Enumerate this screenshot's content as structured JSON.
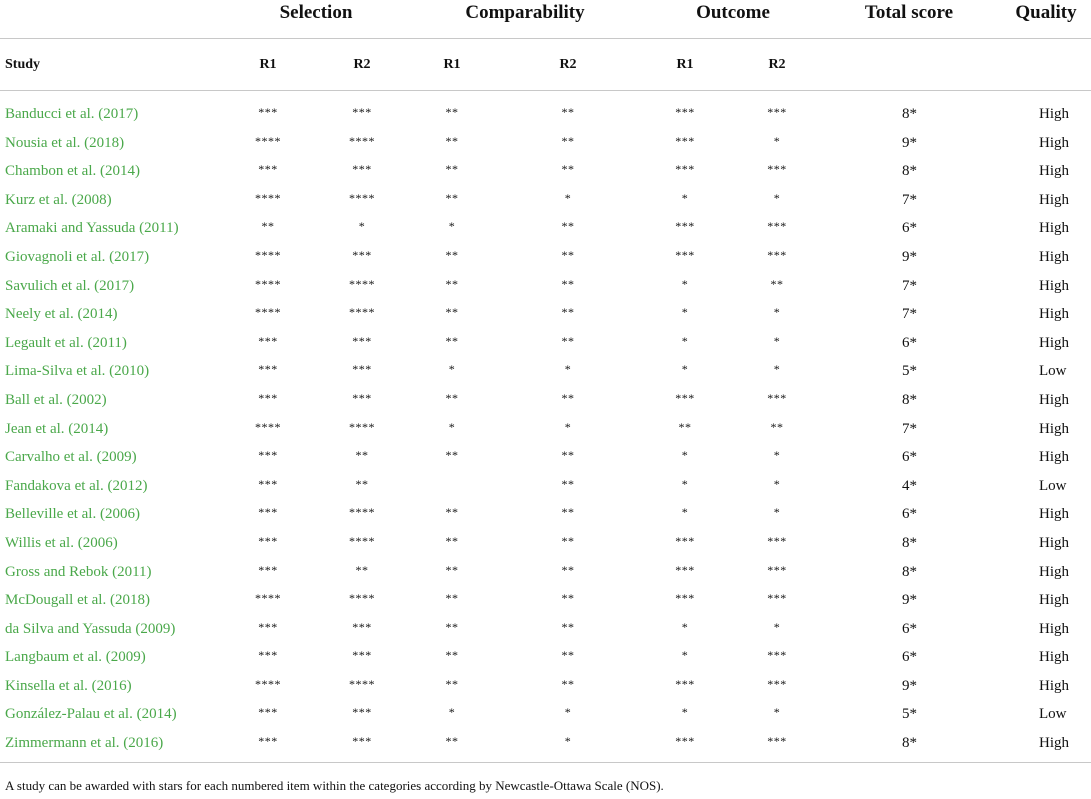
{
  "header": {
    "categories": [
      "Selection",
      "Comparability",
      "Outcome",
      "Total score",
      "Quality"
    ],
    "sub": {
      "study": "Study",
      "sel_r1": "R1",
      "sel_r2": "R2",
      "comp_r1": "R1",
      "comp_r2": "R2",
      "out_r1": "R1",
      "out_r2": "R2"
    }
  },
  "rows": [
    {
      "study": "Banducci et al. (2017)",
      "sel_r1": "***",
      "sel_r2": "***",
      "comp_r1": "**",
      "comp_r2": "**",
      "out_r1": "***",
      "out_r2": "***",
      "total": "8*",
      "quality": "High"
    },
    {
      "study": "Nousia et al. (2018)",
      "sel_r1": "****",
      "sel_r2": "****",
      "comp_r1": "**",
      "comp_r2": "**",
      "out_r1": "***",
      "out_r2": "*",
      "total": "9*",
      "quality": "High"
    },
    {
      "study": "Chambon et al. (2014)",
      "sel_r1": "***",
      "sel_r2": "***",
      "comp_r1": "**",
      "comp_r2": "**",
      "out_r1": "***",
      "out_r2": "***",
      "total": "8*",
      "quality": "High"
    },
    {
      "study": "Kurz et al. (2008)",
      "sel_r1": "****",
      "sel_r2": "****",
      "comp_r1": "**",
      "comp_r2": "*",
      "out_r1": "*",
      "out_r2": "*",
      "total": "7*",
      "quality": "High"
    },
    {
      "study": "Aramaki and Yassuda (2011)",
      "sel_r1": "**",
      "sel_r2": "*",
      "comp_r1": "*",
      "comp_r2": "**",
      "out_r1": "***",
      "out_r2": "***",
      "total": "6*",
      "quality": "High"
    },
    {
      "study": "Giovagnoli et al. (2017)",
      "sel_r1": "****",
      "sel_r2": "***",
      "comp_r1": "**",
      "comp_r2": "**",
      "out_r1": "***",
      "out_r2": "***",
      "total": "9*",
      "quality": "High"
    },
    {
      "study": "Savulich et al. (2017)",
      "sel_r1": "****",
      "sel_r2": "****",
      "comp_r1": "**",
      "comp_r2": "**",
      "out_r1": "*",
      "out_r2": "**",
      "total": "7*",
      "quality": "High"
    },
    {
      "study": "Neely et al. (2014)",
      "sel_r1": "****",
      "sel_r2": "****",
      "comp_r1": "**",
      "comp_r2": "**",
      "out_r1": "*",
      "out_r2": "*",
      "total": "7*",
      "quality": "High"
    },
    {
      "study": "Legault et al. (2011)",
      "sel_r1": "***",
      "sel_r2": "***",
      "comp_r1": "**",
      "comp_r2": "**",
      "out_r1": "*",
      "out_r2": "*",
      "total": "6*",
      "quality": "High"
    },
    {
      "study": "Lima-Silva et al. (2010)",
      "sel_r1": "***",
      "sel_r2": "***",
      "comp_r1": "*",
      "comp_r2": "*",
      "out_r1": "*",
      "out_r2": "*",
      "total": "5*",
      "quality": "Low"
    },
    {
      "study": "Ball et al. (2002)",
      "sel_r1": "***",
      "sel_r2": "***",
      "comp_r1": "**",
      "comp_r2": "**",
      "out_r1": "***",
      "out_r2": "***",
      "total": "8*",
      "quality": "High"
    },
    {
      "study": "Jean et al. (2014)",
      "sel_r1": "****",
      "sel_r2": "****",
      "comp_r1": "*",
      "comp_r2": "*",
      "out_r1": "**",
      "out_r2": "**",
      "total": "7*",
      "quality": "High"
    },
    {
      "study": "Carvalho et al. (2009)",
      "sel_r1": "***",
      "sel_r2": "**",
      "comp_r1": "**",
      "comp_r2": "**",
      "out_r1": "*",
      "out_r2": "*",
      "total": "6*",
      "quality": "High"
    },
    {
      "study": "Fandakova et al. (2012)",
      "sel_r1": "***",
      "sel_r2": "**",
      "comp_r1": "",
      "comp_r2": "**",
      "out_r1": "*",
      "out_r2": "*",
      "total": "4*",
      "quality": "Low"
    },
    {
      "study": "Belleville et al. (2006)",
      "sel_r1": "***",
      "sel_r2": "****",
      "comp_r1": "**",
      "comp_r2": "**",
      "out_r1": "*",
      "out_r2": "*",
      "total": "6*",
      "quality": "High"
    },
    {
      "study": "Willis et al. (2006)",
      "sel_r1": "***",
      "sel_r2": "****",
      "comp_r1": "**",
      "comp_r2": "**",
      "out_r1": "***",
      "out_r2": "***",
      "total": "8*",
      "quality": "High"
    },
    {
      "study": "Gross and Rebok (2011)",
      "sel_r1": "***",
      "sel_r2": "**",
      "comp_r1": "**",
      "comp_r2": "**",
      "out_r1": "***",
      "out_r2": "***",
      "total": "8*",
      "quality": "High"
    },
    {
      "study": "McDougall et al. (2018)",
      "sel_r1": "****",
      "sel_r2": "****",
      "comp_r1": "**",
      "comp_r2": "**",
      "out_r1": "***",
      "out_r2": "***",
      "total": "9*",
      "quality": "High"
    },
    {
      "study": "da Silva and Yassuda (2009)",
      "sel_r1": "***",
      "sel_r2": "***",
      "comp_r1": "**",
      "comp_r2": "**",
      "out_r1": "*",
      "out_r2": "*",
      "total": "6*",
      "quality": "High"
    },
    {
      "study": "Langbaum et al. (2009)",
      "sel_r1": "***",
      "sel_r2": "***",
      "comp_r1": "**",
      "comp_r2": "**",
      "out_r1": "*",
      "out_r2": "***",
      "total": "6*",
      "quality": "High"
    },
    {
      "study": "Kinsella et al. (2016)",
      "sel_r1": "****",
      "sel_r2": "****",
      "comp_r1": "**",
      "comp_r2": "**",
      "out_r1": "***",
      "out_r2": "***",
      "total": "9*",
      "quality": "High"
    },
    {
      "study": "González-Palau et al. (2014)",
      "sel_r1": "***",
      "sel_r2": "***",
      "comp_r1": "*",
      "comp_r2": "*",
      "out_r1": "*",
      "out_r2": "*",
      "total": "5*",
      "quality": "Low"
    },
    {
      "study": "Zimmermann et al. (2016)",
      "sel_r1": "***",
      "sel_r2": "***",
      "comp_r1": "**",
      "comp_r2": "*",
      "out_r1": "***",
      "out_r2": "***",
      "total": "8*",
      "quality": "High"
    }
  ],
  "footnote": "A study can be awarded with stars for each numbered item within the categories according by Newcastle-Ottawa Scale (NOS).",
  "colors": {
    "study_link": "#4aa84a",
    "rule": "#c8c8c8"
  }
}
